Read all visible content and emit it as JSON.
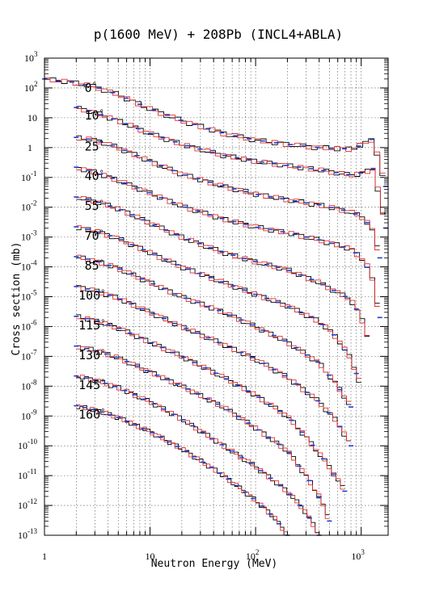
{
  "chart_data": {
    "type": "line",
    "title": "p(1600 MeV) + 208Pb (INCL4+ABLA)",
    "xlabel": "Neutron Energy (MeV)",
    "ylabel": "Cross section (mb)",
    "x_scale": "log",
    "y_scale": "log",
    "xlim": [
      1,
      1800
    ],
    "ylim": [
      1e-13,
      1000
    ],
    "grid": true,
    "x_ticks": [
      {
        "value": 1,
        "base": "1",
        "exp": ""
      },
      {
        "value": 10,
        "base": "10",
        "exp": ""
      },
      {
        "value": 100,
        "base": "10",
        "exp": "2"
      },
      {
        "value": 1000,
        "base": "10",
        "exp": "3"
      }
    ],
    "y_ticks": [
      {
        "value": 1e-13,
        "base": "10",
        "exp": "-13"
      },
      {
        "value": 1e-12,
        "base": "10",
        "exp": "-12"
      },
      {
        "value": 1e-11,
        "base": "10",
        "exp": "-11"
      },
      {
        "value": 1e-10,
        "base": "10",
        "exp": "-10"
      },
      {
        "value": 1e-09,
        "base": "10",
        "exp": "-9"
      },
      {
        "value": 1e-08,
        "base": "10",
        "exp": "-8"
      },
      {
        "value": 1e-07,
        "base": "10",
        "exp": "-7"
      },
      {
        "value": 1e-06,
        "base": "10",
        "exp": "-6"
      },
      {
        "value": 1e-05,
        "base": "10",
        "exp": "-5"
      },
      {
        "value": 0.0001,
        "base": "10",
        "exp": "-4"
      },
      {
        "value": 0.001,
        "base": "10",
        "exp": "-3"
      },
      {
        "value": 0.01,
        "base": "10",
        "exp": "-2"
      },
      {
        "value": 0.1,
        "base": "10",
        "exp": "-1"
      },
      {
        "value": 1,
        "base": "1",
        "exp": ""
      },
      {
        "value": 10,
        "base": "10",
        "exp": ""
      },
      {
        "value": 100,
        "base": "10",
        "exp": "2"
      },
      {
        "value": 1000,
        "base": "10",
        "exp": "3"
      }
    ],
    "series_colors": {
      "data": "#1f3fd0",
      "model_red": "#e03030",
      "model_black": "#000000"
    },
    "spectra": [
      {
        "label": "0",
        "label_unit": "°",
        "label_x": 2.4,
        "label_y": 100,
        "values": [
          [
            1,
            200
          ],
          [
            1.5,
            170
          ],
          [
            2,
            150
          ],
          [
            3,
            110
          ],
          [
            5,
            60
          ],
          [
            10,
            20
          ],
          [
            20,
            8
          ],
          [
            50,
            3
          ],
          [
            100,
            1.8
          ],
          [
            200,
            1.3
          ],
          [
            400,
            1.0
          ],
          [
            800,
            0.9
          ],
          [
            1100,
            1.4
          ],
          [
            1300,
            2
          ],
          [
            1500,
            0.3
          ],
          [
            1700,
            0.05
          ]
        ]
      },
      {
        "label": "10",
        "label_unit": "°",
        "label_x": 2.4,
        "label_y": 12,
        "values": [
          [
            2,
            22
          ],
          [
            3,
            15
          ],
          [
            5,
            8
          ],
          [
            10,
            3
          ],
          [
            20,
            1.3
          ],
          [
            50,
            0.55
          ],
          [
            100,
            0.35
          ],
          [
            200,
            0.25
          ],
          [
            400,
            0.18
          ],
          [
            800,
            0.12
          ],
          [
            1100,
            0.15
          ],
          [
            1300,
            0.2
          ],
          [
            1500,
            0.02
          ],
          [
            1700,
            0.002
          ]
        ]
      },
      {
        "label": "25",
        "label_unit": "°",
        "label_x": 2.4,
        "label_y": 1.1,
        "values": [
          [
            2,
            2.2
          ],
          [
            3,
            1.8
          ],
          [
            5,
            1
          ],
          [
            10,
            0.35
          ],
          [
            20,
            0.13
          ],
          [
            50,
            0.05
          ],
          [
            100,
            0.028
          ],
          [
            200,
            0.018
          ],
          [
            400,
            0.012
          ],
          [
            800,
            0.007
          ],
          [
            1100,
            0.004
          ],
          [
            1300,
            0.0015
          ],
          [
            1500,
            0.0002
          ]
        ]
      },
      {
        "label": "40",
        "label_unit": "°",
        "label_x": 2.4,
        "label_y": 0.11,
        "values": [
          [
            2,
            0.22
          ],
          [
            3,
            0.15
          ],
          [
            5,
            0.08
          ],
          [
            10,
            0.03
          ],
          [
            20,
            0.011
          ],
          [
            50,
            0.004
          ],
          [
            100,
            0.0022
          ],
          [
            200,
            0.0014
          ],
          [
            400,
            0.0008
          ],
          [
            800,
            0.0004
          ],
          [
            1100,
            0.00015
          ],
          [
            1300,
            3e-05
          ],
          [
            1500,
            2e-06
          ]
        ]
      },
      {
        "label": "55",
        "label_unit": "°",
        "label_x": 2.4,
        "label_y": 0.011,
        "values": [
          [
            2,
            0.022
          ],
          [
            3,
            0.016
          ],
          [
            5,
            0.009
          ],
          [
            10,
            0.003
          ],
          [
            20,
            0.001
          ],
          [
            50,
            0.0003
          ],
          [
            100,
            0.00015
          ],
          [
            200,
            8e-05
          ],
          [
            400,
            3e-05
          ],
          [
            800,
            8e-06
          ],
          [
            1000,
            2e-06
          ],
          [
            1200,
            3e-07
          ]
        ]
      },
      {
        "label": "70",
        "label_unit": "°",
        "label_x": 2.4,
        "label_y": 0.0011,
        "values": [
          [
            2,
            0.0022
          ],
          [
            3,
            0.0016
          ],
          [
            5,
            0.0009
          ],
          [
            10,
            0.0003
          ],
          [
            20,
            0.0001
          ],
          [
            50,
            3e-05
          ],
          [
            100,
            1.2e-05
          ],
          [
            200,
            5e-06
          ],
          [
            400,
            1.5e-06
          ],
          [
            600,
            4e-07
          ],
          [
            800,
            8e-08
          ],
          [
            1000,
            1e-08
          ]
        ]
      },
      {
        "label": "85",
        "label_unit": "°",
        "label_x": 2.4,
        "label_y": 0.00011,
        "values": [
          [
            2,
            0.00022
          ],
          [
            3,
            0.00016
          ],
          [
            5,
            9e-05
          ],
          [
            10,
            3e-05
          ],
          [
            20,
            1e-05
          ],
          [
            50,
            3e-06
          ],
          [
            100,
            1e-06
          ],
          [
            200,
            3e-07
          ],
          [
            400,
            6e-08
          ],
          [
            600,
            1e-08
          ],
          [
            800,
            2e-09
          ]
        ]
      },
      {
        "label": "100",
        "label_unit": "°",
        "label_x": 2.1,
        "label_y": 1.1e-05,
        "values": [
          [
            2,
            2.2e-05
          ],
          [
            3,
            1.6e-05
          ],
          [
            5,
            9e-06
          ],
          [
            10,
            3e-06
          ],
          [
            20,
            1e-06
          ],
          [
            50,
            2.5e-07
          ],
          [
            100,
            8e-08
          ],
          [
            200,
            2e-08
          ],
          [
            400,
            3e-09
          ],
          [
            600,
            6e-10
          ],
          [
            800,
            1e-10
          ]
        ]
      },
      {
        "label": "115",
        "label_unit": "°",
        "label_x": 2.1,
        "label_y": 1.1e-06,
        "values": [
          [
            2,
            2.2e-06
          ],
          [
            3,
            1.6e-06
          ],
          [
            5,
            9e-07
          ],
          [
            10,
            3e-07
          ],
          [
            20,
            1e-07
          ],
          [
            50,
            2e-08
          ],
          [
            100,
            5e-09
          ],
          [
            200,
            1e-09
          ],
          [
            300,
            2e-10
          ],
          [
            500,
            2e-11
          ],
          [
            700,
            3e-12
          ]
        ]
      },
      {
        "label": "130",
        "label_unit": "°",
        "label_x": 2.1,
        "label_y": 1.1e-07,
        "values": [
          [
            2,
            2.2e-07
          ],
          [
            3,
            1.6e-07
          ],
          [
            5,
            9e-08
          ],
          [
            10,
            3e-08
          ],
          [
            20,
            1e-08
          ],
          [
            50,
            2e-09
          ],
          [
            100,
            4e-10
          ],
          [
            200,
            7e-11
          ],
          [
            300,
            1e-11
          ],
          [
            400,
            2e-12
          ],
          [
            500,
            3e-13
          ]
        ]
      },
      {
        "label": "145",
        "label_unit": "°",
        "label_x": 2.1,
        "label_y": 1.1e-08,
        "values": [
          [
            2,
            2.2e-08
          ],
          [
            3,
            1.6e-08
          ],
          [
            5,
            9e-09
          ],
          [
            10,
            3e-09
          ],
          [
            20,
            8e-10
          ],
          [
            50,
            1e-10
          ],
          [
            100,
            2e-11
          ],
          [
            200,
            3e-12
          ],
          [
            300,
            6e-13
          ],
          [
            400,
            1e-13
          ]
        ]
      },
      {
        "label": "160",
        "label_unit": "°",
        "label_x": 2.1,
        "label_y": 1.1e-09,
        "values": [
          [
            2,
            2.2e-09
          ],
          [
            3,
            1.6e-09
          ],
          [
            5,
            9e-10
          ],
          [
            10,
            3e-10
          ],
          [
            20,
            8e-11
          ],
          [
            50,
            1e-11
          ],
          [
            100,
            1.5e-12
          ],
          [
            150,
            4e-13
          ],
          [
            200,
            1e-13
          ]
        ]
      }
    ]
  }
}
